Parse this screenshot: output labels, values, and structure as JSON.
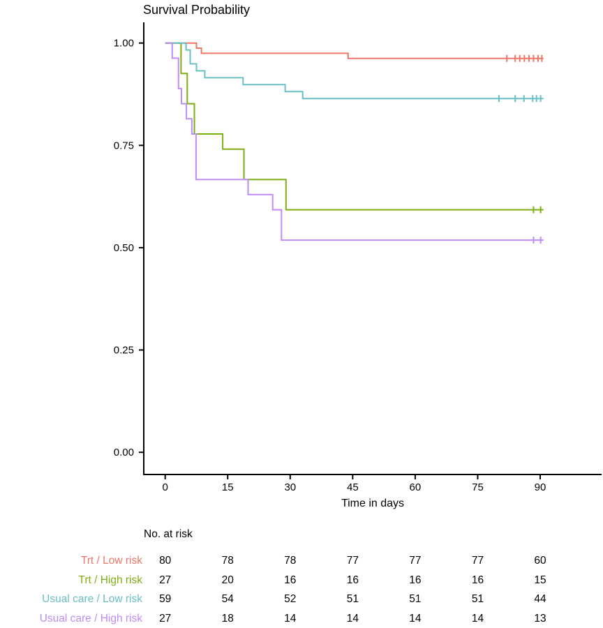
{
  "chart_data": {
    "type": "line",
    "variant": "kaplan_meier_step",
    "title": "Survival Probability",
    "xlabel": "Time in days",
    "ylabel": "",
    "xlim": [
      0,
      105
    ],
    "ylim": [
      0,
      1
    ],
    "grid": false,
    "legend_position": "none (colored labels in risk table)",
    "x_ticks": [
      0,
      15,
      30,
      45,
      60,
      75,
      90
    ],
    "y_ticks": [
      1.0,
      0.75,
      0.5,
      0.25,
      0.0
    ],
    "y_tick_labels": [
      "1.00",
      "0.75",
      "0.50",
      "0.25",
      "0.00"
    ],
    "end_time": 90.8,
    "series": [
      {
        "name": "Trt / Low risk",
        "color": "#ED7669",
        "steps": [
          [
            0,
            1.0
          ],
          [
            7.5,
            0.9875
          ],
          [
            8.7,
            0.975
          ],
          [
            43.9,
            0.9625
          ]
        ],
        "censors": [
          [
            82.0,
            0.9625
          ],
          [
            84.0,
            0.9625
          ],
          [
            85.1,
            0.9625
          ],
          [
            86.2,
            0.9625
          ],
          [
            87.3,
            0.9625
          ],
          [
            88.4,
            0.9625
          ],
          [
            89.5,
            0.9625
          ],
          [
            90.4,
            0.9625
          ]
        ]
      },
      {
        "name": "Trt / High risk",
        "color": "#7EAE12",
        "steps": [
          [
            0,
            1.0
          ],
          [
            3.8,
            0.9259
          ],
          [
            5.3,
            0.8519
          ],
          [
            7.0,
            0.7778
          ],
          [
            13.8,
            0.7407
          ],
          [
            18.9,
            0.6667
          ],
          [
            29.0,
            0.5926
          ]
        ],
        "censors": [
          [
            88.4,
            0.5926
          ],
          [
            90.1,
            0.5926
          ]
        ]
      },
      {
        "name": "Usual care / Low risk",
        "color": "#69BFC4",
        "steps": [
          [
            0,
            1.0
          ],
          [
            5.0,
            0.9831
          ],
          [
            6.0,
            0.9492
          ],
          [
            7.5,
            0.9322
          ],
          [
            9.5,
            0.9153
          ],
          [
            18.7,
            0.8983
          ],
          [
            28.8,
            0.8814
          ],
          [
            33.0,
            0.8644
          ]
        ],
        "censors": [
          [
            80.1,
            0.8644
          ],
          [
            84.0,
            0.8644
          ],
          [
            86.1,
            0.8644
          ],
          [
            88.2,
            0.8644
          ],
          [
            89.1,
            0.8644
          ],
          [
            90.1,
            0.8644
          ]
        ]
      },
      {
        "name": "Usual care / High risk",
        "color": "#BE8CF8",
        "steps": [
          [
            0,
            1.0
          ],
          [
            1.7,
            0.963
          ],
          [
            3.2,
            0.8889
          ],
          [
            3.9,
            0.8519
          ],
          [
            5.1,
            0.8148
          ],
          [
            6.4,
            0.7778
          ],
          [
            7.4,
            0.6667
          ],
          [
            19.9,
            0.6296
          ],
          [
            25.8,
            0.5926
          ],
          [
            27.9,
            0.5185
          ]
        ],
        "censors": [
          [
            88.4,
            0.5185
          ],
          [
            90.1,
            0.5185
          ]
        ]
      }
    ]
  },
  "risk_table": {
    "header": "No. at risk",
    "time_points": [
      0,
      15,
      30,
      45,
      60,
      75,
      90
    ],
    "rows": [
      {
        "label": "Trt / Low risk",
        "color": "#ED7669",
        "counts": [
          80,
          78,
          78,
          77,
          77,
          77,
          60
        ]
      },
      {
        "label": "Trt / High risk",
        "color": "#7EAE12",
        "counts": [
          27,
          20,
          16,
          16,
          16,
          16,
          15
        ]
      },
      {
        "label": "Usual care / Low risk",
        "color": "#69BFC4",
        "counts": [
          59,
          54,
          52,
          51,
          51,
          51,
          44
        ]
      },
      {
        "label": "Usual care / High risk",
        "color": "#BE8CF8",
        "counts": [
          27,
          18,
          14,
          14,
          14,
          14,
          13
        ]
      }
    ]
  }
}
